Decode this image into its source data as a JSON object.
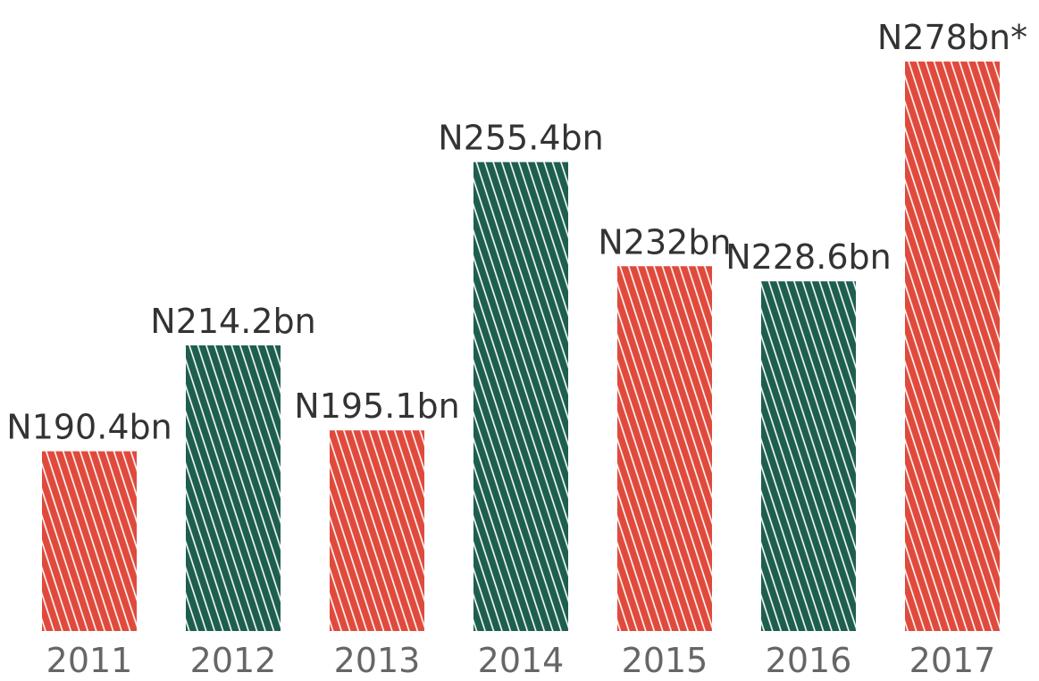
{
  "chart_data": {
    "type": "bar",
    "categories": [
      "2011",
      "2012",
      "2013",
      "2014",
      "2015",
      "2016",
      "2017"
    ],
    "values": [
      190.4,
      214.2,
      195.1,
      255.4,
      232,
      228.6,
      278
    ],
    "value_labels": [
      "N190.4bn",
      "N214.2bn",
      "N195.1bn",
      "N255.4bn",
      "N232bn",
      "N228.6bn",
      "N278bn*"
    ],
    "colors": [
      "#e04a3c",
      "#1d5e4f",
      "#e04a3c",
      "#1d5e4f",
      "#e04a3c",
      "#1d5e4f",
      "#e04a3c"
    ],
    "ylim": [
      150,
      280
    ]
  }
}
